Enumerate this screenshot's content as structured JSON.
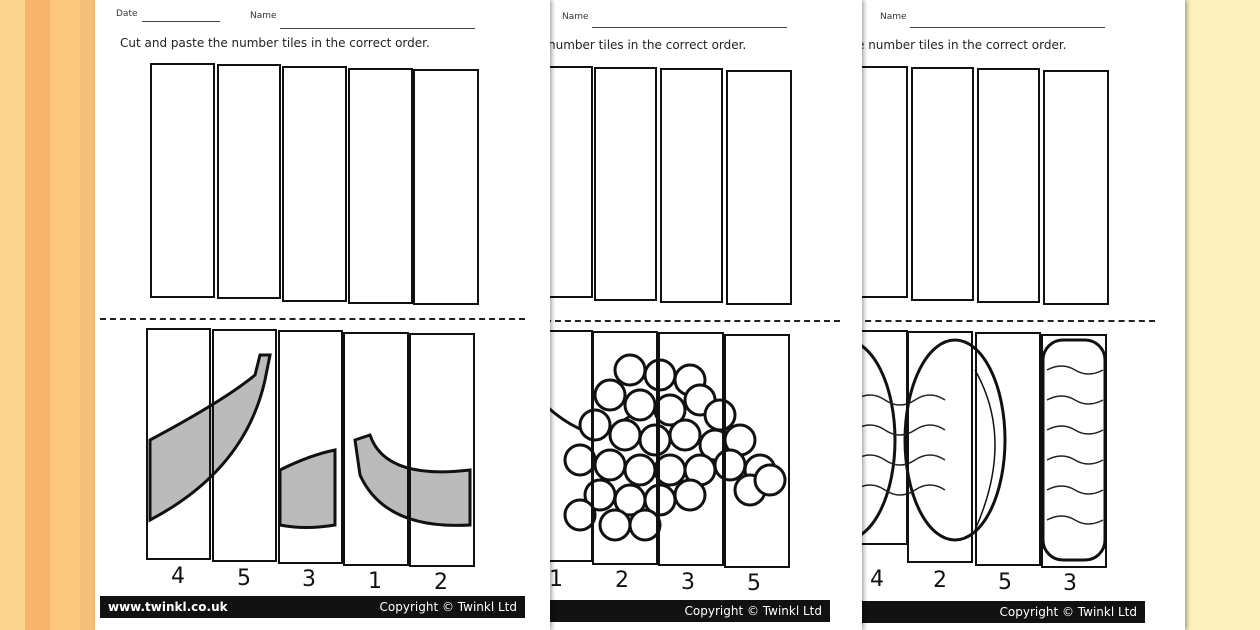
{
  "sheets": [
    {
      "date_label": "Date",
      "name_label": "Name",
      "instruction": "Cut and paste the number tiles in the correct order.",
      "picture": "banana",
      "numbers": [
        "4",
        "5",
        "3",
        "1",
        "2"
      ],
      "footer_url": "www.twinkl.co.uk",
      "copyright": "Copyright © Twinkl Ltd"
    },
    {
      "name_label": "Name",
      "instruction": "number tiles in the correct order.",
      "picture": "grapes",
      "numbers": [
        "1",
        "2",
        "3",
        "5"
      ],
      "copyright": "Copyright © Twinkl Ltd"
    },
    {
      "name_label": "Name",
      "instruction": "e number tiles in the correct order.",
      "picture": "watermelon",
      "numbers": [
        "4",
        "2",
        "5",
        "3"
      ],
      "copyright": "Copyright © Twinkl Ltd"
    }
  ]
}
